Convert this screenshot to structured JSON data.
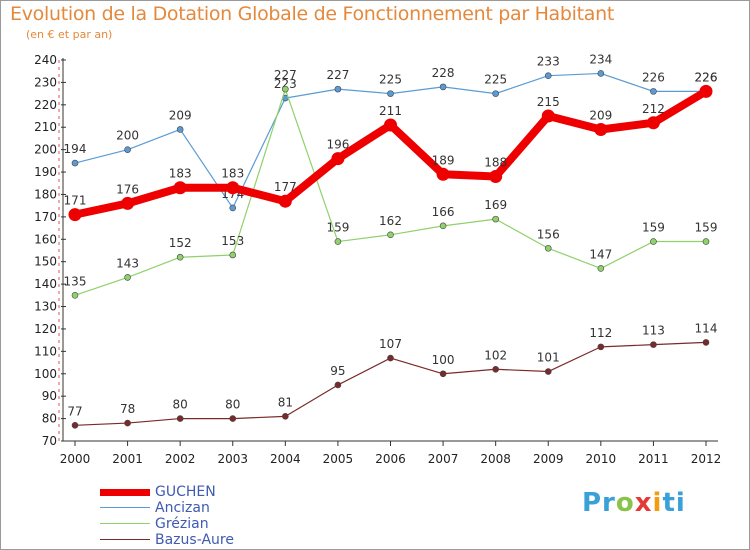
{
  "chart_data": {
    "type": "line",
    "title": "Evolution de la Dotation Globale de Fonctionnement par Habitant",
    "subtitle": "(en € et par an)",
    "x": [
      "2000",
      "2001",
      "2002",
      "2003",
      "2004",
      "2005",
      "2006",
      "2007",
      "2008",
      "2009",
      "2010",
      "2011",
      "2012"
    ],
    "ylim": [
      70,
      240
    ],
    "yticks": [
      70,
      80,
      90,
      100,
      110,
      120,
      130,
      140,
      150,
      160,
      170,
      180,
      190,
      200,
      210,
      220,
      230,
      240
    ],
    "grid": false,
    "legend_position": "bottom-left",
    "series": [
      {
        "name": "GUCHEN",
        "color": "#ee0000",
        "values": [
          171,
          176,
          183,
          183,
          177,
          196,
          211,
          189,
          188,
          215,
          209,
          212,
          226
        ],
        "labels": [
          "171",
          "176",
          "183",
          "183",
          "177",
          "196",
          "211",
          "189",
          "188",
          "215",
          "209",
          "212",
          "226"
        ]
      },
      {
        "name": "Ancizan",
        "color": "#5b9bd5",
        "values": [
          194,
          200,
          209,
          174,
          223,
          227,
          225,
          228,
          225,
          233,
          234,
          226,
          226
        ],
        "labels": [
          "194",
          "200",
          "209",
          "174",
          "223",
          "227",
          "225",
          "228",
          "225",
          "233",
          "234",
          "226",
          "226"
        ]
      },
      {
        "name": "Grézian",
        "color": "#8fd16b",
        "values": [
          135,
          143,
          152,
          153,
          227,
          159,
          162,
          166,
          169,
          156,
          147,
          159,
          159
        ],
        "labels": [
          "135",
          "143",
          "152",
          "153",
          "227",
          "159",
          "162",
          "166",
          "169",
          "156",
          "147",
          "159",
          "159"
        ]
      },
      {
        "name": "Bazus-Aure",
        "color": "#7a2a2a",
        "values": [
          77,
          78,
          80,
          80,
          81,
          95,
          107,
          100,
          102,
          101,
          112,
          113,
          114
        ],
        "labels": [
          "77",
          "78",
          "80",
          "80",
          "81",
          "95",
          "107",
          "100",
          "102",
          "101",
          "112",
          "113",
          "114"
        ]
      }
    ]
  },
  "logo": {
    "p1": "Pr",
    "p2": "o",
    "p3": "x",
    "p4": "i",
    "p5": "ti"
  }
}
